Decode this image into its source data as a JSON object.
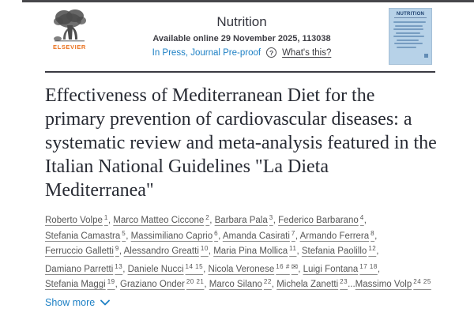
{
  "header": {
    "publisher_logo_text": "ELSEVIER",
    "journal_title": "Nutrition",
    "availability": "Available online 29 November 2025, 113038",
    "status_link": "In Press, Journal Pre-proof",
    "help_icon_glyph": "?",
    "whats_this_link": "What's this?",
    "cover": {
      "title": "NUTRITION"
    }
  },
  "article": {
    "title": "Effectiveness of Mediterranean Diet for the primary prevention of cardiovascular diseases: a systematic review and meta-analysis featured in the Italian National Guidelines \"La Dieta Mediterranea\""
  },
  "authors": [
    {
      "name": "Roberto Volpe",
      "sup": "1",
      "sep": ", "
    },
    {
      "name": "Marco Matteo Ciccone",
      "sup": "2",
      "sep": ", "
    },
    {
      "name": "Barbara Pala",
      "sup": "3",
      "sep": ", "
    },
    {
      "name": "Federico Barbarano",
      "sup": "4",
      "sep": ", "
    },
    {
      "name": "Stefania Camastra",
      "sup": "5",
      "sep": ", "
    },
    {
      "name": "Massimiliano Caprio",
      "sup": "6",
      "sep": ", "
    },
    {
      "name": "Amanda Casirati",
      "sup": "7",
      "sep": ", "
    },
    {
      "name": "Armando Ferrera",
      "sup": "8",
      "sep": ", "
    },
    {
      "name": "Ferruccio Galletti",
      "sup": "9",
      "sep": ", "
    },
    {
      "name": "Alessandro Greatti",
      "sup": "10",
      "sep": ", "
    },
    {
      "name": "Maria Pina Mollica",
      "sup": "11",
      "sep": ", "
    },
    {
      "name": "Stefania Paolillo",
      "sup": "12",
      "sep": ", "
    },
    {
      "name": "Damiano Parretti",
      "sup": "13",
      "sep": ", "
    },
    {
      "name": "Daniele Nucci",
      "sup": "14 15",
      "sep": ", "
    },
    {
      "name": "Nicola Veronese",
      "sup": "16 #",
      "email": true,
      "sep": ", "
    },
    {
      "name": "Luigi Fontana",
      "sup": "17 18",
      "sep": ", "
    },
    {
      "name": "Stefania Maggi",
      "sup": "19",
      "sep": ", "
    },
    {
      "name": "Graziano Onder",
      "sup": "20 21",
      "sep": ", "
    },
    {
      "name": "Marco Silano",
      "sup": "22",
      "sep": ", "
    },
    {
      "name": "Michela Zanetti",
      "sup": "23",
      "sep": "..."
    },
    {
      "name": "Massimo Volp",
      "sup": "24 25",
      "sep": ""
    }
  ],
  "show_more": {
    "label": "Show more"
  },
  "icons": {
    "email": "✉",
    "chevron_down": "chevron-down",
    "help": "question-mark-circle"
  },
  "colors": {
    "elsevier_orange": "#e9701c",
    "link_blue": "#1d80c5",
    "title_text": "#272a33",
    "author_text": "#565656",
    "divider": "#3a3a42",
    "cover_bg": "#b7d2e8",
    "cover_text": "#1c3f6e",
    "top_edge": "#47474b"
  }
}
